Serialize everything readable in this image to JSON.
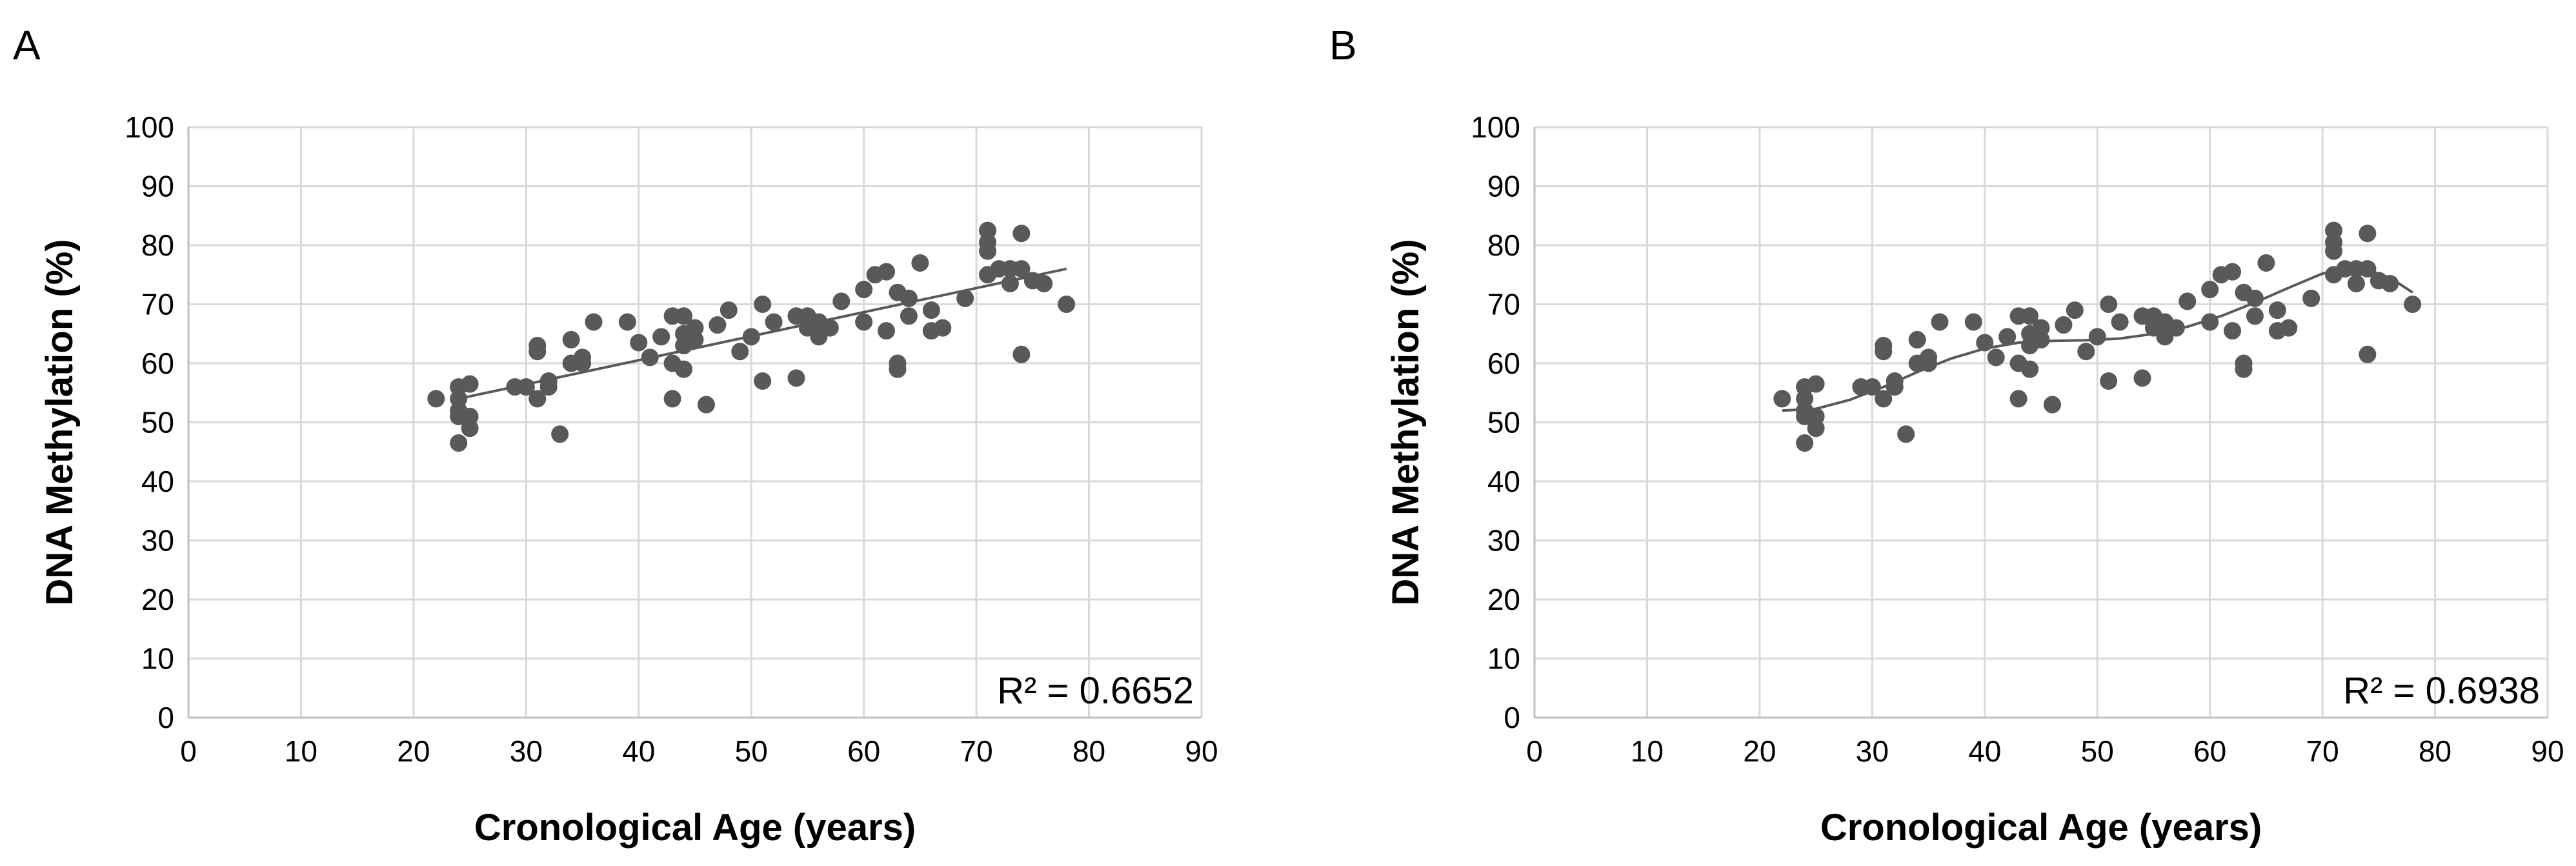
{
  "chart_data": [
    {
      "type": "scatter",
      "panel_label": "A",
      "title": "",
      "xlabel": "Cronological Age (years)",
      "ylabel": "DNA Methylation (%)",
      "xlim": [
        0,
        90
      ],
      "ylim": [
        0,
        100
      ],
      "xticks": [
        0,
        10,
        20,
        30,
        40,
        50,
        60,
        70,
        80,
        90
      ],
      "yticks": [
        0,
        10,
        20,
        30,
        40,
        50,
        60,
        70,
        80,
        90,
        100
      ],
      "xtick_labels": [
        "0",
        "10",
        "20",
        "30",
        "40",
        "50",
        "60",
        "70",
        "80",
        "90"
      ],
      "ytick_labels": [
        "0",
        "10",
        "20",
        "30",
        "40",
        "50",
        "60",
        "70",
        "80",
        "90",
        "100"
      ],
      "grid": true,
      "annotation": "R² = 0.6652",
      "trendline": {
        "kind": "linear",
        "x": [
          24,
          78
        ],
        "y": [
          54,
          76
        ]
      },
      "x": [
        22,
        24,
        24,
        24,
        24,
        24,
        25,
        25,
        25,
        29,
        30,
        31,
        31,
        31,
        32,
        32,
        33,
        34,
        34,
        35,
        35,
        36,
        39,
        40,
        41,
        42,
        43,
        43,
        43,
        44,
        44,
        44,
        44,
        45,
        45,
        46,
        47,
        48,
        49,
        50,
        51,
        51,
        52,
        54,
        54,
        55,
        55,
        56,
        56,
        56,
        57,
        58,
        60,
        60,
        61,
        62,
        62,
        63,
        63,
        63,
        64,
        64,
        65,
        66,
        66,
        67,
        69,
        71,
        71,
        71,
        71,
        72,
        73,
        73,
        74,
        74,
        74,
        75,
        76,
        78
      ],
      "y": [
        54,
        56,
        54,
        52,
        51,
        46.5,
        56.5,
        51,
        49,
        56,
        56,
        63,
        62,
        54,
        57,
        56,
        48,
        64,
        60,
        61,
        60,
        67,
        67,
        63.5,
        61,
        64.5,
        68,
        60,
        54,
        68,
        65,
        63,
        59,
        66,
        64,
        53,
        66.5,
        69,
        62,
        64.5,
        70,
        57,
        67,
        68,
        57.5,
        68,
        66,
        67,
        66,
        64.5,
        66,
        70.5,
        72.5,
        67,
        75,
        75.5,
        65.5,
        72,
        60,
        59,
        71,
        68,
        77,
        69,
        65.5,
        66,
        71,
        82.5,
        80.5,
        79,
        75,
        76,
        76,
        73.5,
        82,
        76,
        61.5,
        74,
        73.5,
        70
      ]
    },
    {
      "type": "scatter",
      "panel_label": "B",
      "title": "",
      "xlabel": "Cronological Age (years)",
      "ylabel": "DNA Methylation (%)",
      "xlim": [
        0,
        90
      ],
      "ylim": [
        0,
        100
      ],
      "xticks": [
        0,
        10,
        20,
        30,
        40,
        50,
        60,
        70,
        80,
        90
      ],
      "yticks": [
        0,
        10,
        20,
        30,
        40,
        50,
        60,
        70,
        80,
        90,
        100
      ],
      "xtick_labels": [
        "0",
        "10",
        "20",
        "30",
        "40",
        "50",
        "60",
        "70",
        "80",
        "90"
      ],
      "ytick_labels": [
        "0",
        "10",
        "20",
        "30",
        "40",
        "50",
        "60",
        "70",
        "80",
        "90",
        "100"
      ],
      "grid": true,
      "annotation": "R² = 0.6938",
      "trendline": {
        "kind": "polynomial",
        "x": [
          22,
          25,
          28,
          31,
          34,
          37,
          40,
          43,
          46,
          49,
          52,
          55,
          58,
          61,
          64,
          67,
          70,
          72,
          74,
          76,
          78
        ],
        "y": [
          52,
          52.3,
          53.8,
          56,
          58.5,
          60.8,
          62.5,
          63.5,
          63.8,
          63.9,
          64.2,
          65,
          66.2,
          68,
          70.3,
          72.8,
          75.2,
          76,
          75.8,
          74.5,
          72
        ]
      },
      "x": [
        22,
        24,
        24,
        24,
        24,
        24,
        25,
        25,
        25,
        29,
        30,
        31,
        31,
        31,
        32,
        32,
        33,
        34,
        34,
        35,
        35,
        36,
        39,
        40,
        41,
        42,
        43,
        43,
        43,
        44,
        44,
        44,
        44,
        45,
        45,
        46,
        47,
        48,
        49,
        50,
        51,
        51,
        52,
        54,
        54,
        55,
        55,
        56,
        56,
        56,
        57,
        58,
        60,
        60,
        61,
        62,
        62,
        63,
        63,
        63,
        64,
        64,
        65,
        66,
        66,
        67,
        69,
        71,
        71,
        71,
        71,
        72,
        73,
        73,
        74,
        74,
        74,
        75,
        76,
        78
      ],
      "y": [
        54,
        56,
        54,
        52,
        51,
        46.5,
        56.5,
        51,
        49,
        56,
        56,
        63,
        62,
        54,
        57,
        56,
        48,
        64,
        60,
        61,
        60,
        67,
        67,
        63.5,
        61,
        64.5,
        68,
        60,
        54,
        68,
        65,
        63,
        59,
        66,
        64,
        53,
        66.5,
        69,
        62,
        64.5,
        70,
        57,
        67,
        68,
        57.5,
        68,
        66,
        67,
        66,
        64.5,
        66,
        70.5,
        72.5,
        67,
        75,
        75.5,
        65.5,
        72,
        60,
        59,
        71,
        68,
        77,
        69,
        65.5,
        66,
        71,
        82.5,
        80.5,
        79,
        75,
        76,
        76,
        73.5,
        82,
        76,
        61.5,
        74,
        73.5,
        70
      ]
    }
  ]
}
